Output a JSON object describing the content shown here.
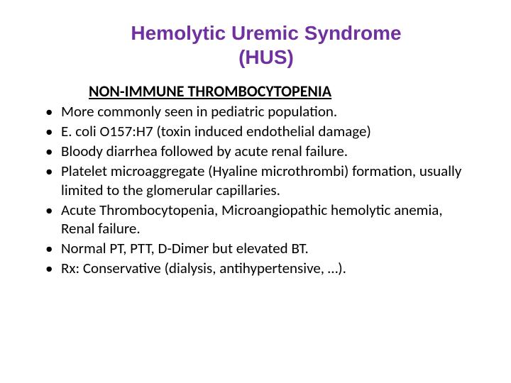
{
  "slide": {
    "title_line1": "Hemolytic Uremic Syndrome",
    "title_line2": "(HUS)",
    "subheader": "NON-IMMUNE THROMBOCYTOPENIA",
    "bullets": [
      "More commonly seen in pediatric population.",
      "E. coli O157:H7  (toxin induced endothelial damage)",
      "Bloody diarrhea followed by acute renal failure.",
      "Platelet microaggregate (Hyaline microthrombi) formation, usually limited to the glomerular capillaries.",
      "Acute Thrombocytopenia, Microangiopathic hemolytic anemia, Renal failure.",
      "Normal PT, PTT, D-Dimer but elevated BT.",
      "Rx: Conservative (dialysis, antihypertensive, …)."
    ],
    "colors": {
      "title_color": "#7030a0",
      "text_color": "#000000",
      "background_color": "#ffffff"
    },
    "typography": {
      "title_fontsize": 28,
      "subheader_fontsize": 22,
      "body_fontsize": 21,
      "title_fontweight": "bold",
      "subheader_fontweight": "bold"
    }
  }
}
